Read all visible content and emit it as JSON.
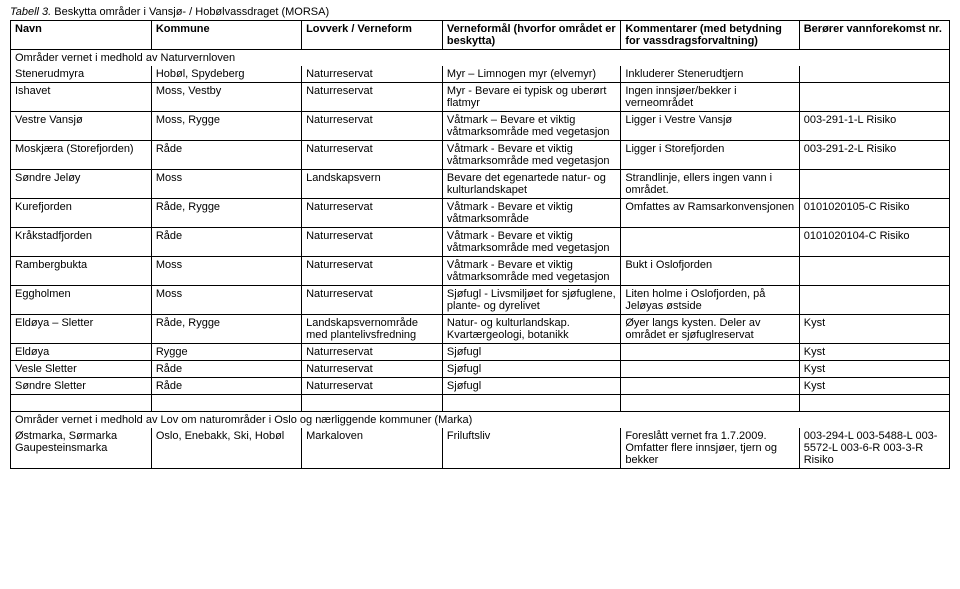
{
  "caption": {
    "label": "Tabell 3.",
    "text": "Beskytta områder i Vansjø- / Hobølvassdraget (MORSA)"
  },
  "headers": {
    "navn": "Navn",
    "kommune": "Kommune",
    "lovverk": "Lovverk / Verneform",
    "formal": "Verneformål (hvorfor området er beskytta)",
    "kommentar": "Kommentarer (med betydning for vassdragsforvaltning)",
    "beror": "Berører vannforekomst nr."
  },
  "section1": "Områder vernet i medhold av Naturvernloven",
  "rows": [
    {
      "n": "Stenerudmyra",
      "k": "Hobøl, Spydeberg",
      "l": "Naturreservat",
      "f": "Myr – Limnogen myr (elvemyr)",
      "c": "Inkluderer Stenerudtjern",
      "b": ""
    },
    {
      "n": "Ishavet",
      "k": "Moss, Vestby",
      "l": "Naturreservat",
      "f": "Myr - Bevare ei typisk og uberørt flatmyr",
      "c": "Ingen innsjøer/bekker i verneområdet",
      "b": ""
    },
    {
      "n": "Vestre Vansjø",
      "k": "Moss, Rygge",
      "l": "Naturreservat",
      "f": "Våtmark – Bevare et viktig våtmarksområde med vegetasjon",
      "c": "Ligger i Vestre Vansjø",
      "b": "003-291-1-L Risiko"
    },
    {
      "n": "Moskjæra (Storefjorden)",
      "k": "Råde",
      "l": "Naturreservat",
      "f": "Våtmark - Bevare et viktig våtmarksområde med vegetasjon",
      "c": "Ligger i Storefjorden",
      "b": "003-291-2-L Risiko"
    },
    {
      "n": "Søndre Jeløy",
      "k": "Moss",
      "l": "Landskapsvern",
      "f": "Bevare det egenartede natur- og kulturlandskapet",
      "c": "Strandlinje, ellers ingen vann i området.",
      "b": ""
    },
    {
      "n": "Kurefjorden",
      "k": "Råde, Rygge",
      "l": "Naturreservat",
      "f": "Våtmark - Bevare et viktig våtmarksområde",
      "c": "Omfattes av Ramsarkonvensjonen",
      "b": "0101020105-C Risiko"
    },
    {
      "n": "Kråkstadfjorden",
      "k": "Råde",
      "l": "Naturreservat",
      "f": "Våtmark - Bevare et viktig våtmarksområde med vegetasjon",
      "c": "",
      "b": "0101020104-C Risiko"
    },
    {
      "n": "Rambergbukta",
      "k": "Moss",
      "l": "Naturreservat",
      "f": "Våtmark - Bevare et viktig våtmarksområde med vegetasjon",
      "c": "Bukt i Oslofjorden",
      "b": ""
    },
    {
      "n": "Eggholmen",
      "k": "Moss",
      "l": "Naturreservat",
      "f": "Sjøfugl - Livsmiljøet for sjøfuglene, plante- og dyrelivet",
      "c": "Liten holme i Oslofjorden, på Jeløyas østside",
      "b": ""
    },
    {
      "n": "Eldøya – Sletter",
      "k": "Råde, Rygge",
      "l": "Landskapsvernområde med plantelivsfredning",
      "f": "Natur- og kulturlandskap. Kvartærgeologi, botanikk",
      "c": "Øyer langs kysten. Deler av området er sjøfuglreservat",
      "b": "Kyst"
    },
    {
      "n": "Eldøya",
      "k": "Rygge",
      "l": "Naturreservat",
      "f": "Sjøfugl",
      "c": "",
      "b": "Kyst"
    },
    {
      "n": "Vesle Sletter",
      "k": "Råde",
      "l": "Naturreservat",
      "f": "Sjøfugl",
      "c": "",
      "b": "Kyst"
    },
    {
      "n": "Søndre Sletter",
      "k": "Råde",
      "l": "Naturreservat",
      "f": "Sjøfugl",
      "c": "",
      "b": "Kyst"
    }
  ],
  "section2": "Områder vernet i medhold av Lov om naturområder i Oslo og nærliggende kommuner (Marka)",
  "row2": {
    "n": "Østmarka, Sørmarka Gaupesteinsmarka",
    "k": "Oslo, Enebakk, Ski, Hobøl",
    "l": "Markaloven",
    "f": "Friluftsliv",
    "c": "Foreslått vernet fra 1.7.2009. Omfatter flere innsjøer, tjern og bekker",
    "b": "003-294-L 003-5488-L 003-5572-L 003-6-R 003-3-R Risiko"
  }
}
